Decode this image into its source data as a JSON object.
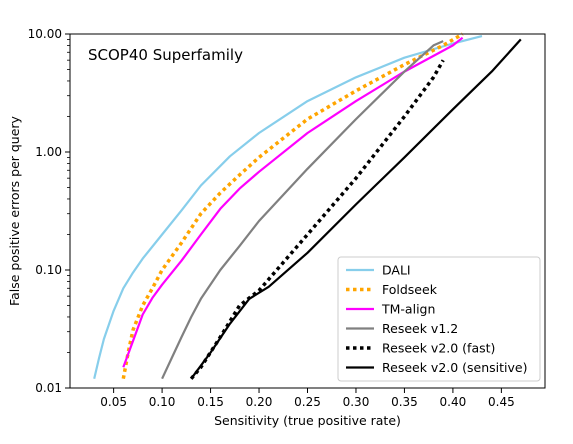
{
  "chart_data": {
    "type": "line",
    "annotation": "SCOP40 Superfamily",
    "xlabel": "Sensitivity (true positive rate)",
    "ylabel": "False positive errors per query",
    "xlim": [
      0.005,
      0.495
    ],
    "ylim": [
      0.01,
      10
    ],
    "yscale": "log",
    "grid": false,
    "legend_position": "bottom-right",
    "x_ticks": [
      0.05,
      0.1,
      0.15,
      0.2,
      0.25,
      0.3,
      0.35,
      0.4,
      0.45
    ],
    "x_tick_labels": [
      "0.05",
      "0.10",
      "0.15",
      "0.20",
      "0.25",
      "0.30",
      "0.35",
      "0.40",
      "0.45"
    ],
    "y_ticks": [
      0.01,
      0.1,
      1,
      10
    ],
    "y_tick_labels": [
      "0.01",
      "0.10",
      "1.00",
      "10.00"
    ],
    "series": [
      {
        "name": "DALI",
        "color": "#87ceeb",
        "dash": "solid",
        "points": [
          [
            0.03,
            0.012
          ],
          [
            0.035,
            0.018
          ],
          [
            0.04,
            0.026
          ],
          [
            0.05,
            0.045
          ],
          [
            0.06,
            0.07
          ],
          [
            0.07,
            0.095
          ],
          [
            0.08,
            0.125
          ],
          [
            0.1,
            0.2
          ],
          [
            0.12,
            0.32
          ],
          [
            0.14,
            0.52
          ],
          [
            0.17,
            0.92
          ],
          [
            0.2,
            1.45
          ],
          [
            0.25,
            2.7
          ],
          [
            0.3,
            4.3
          ],
          [
            0.35,
            6.3
          ],
          [
            0.4,
            8.3
          ],
          [
            0.43,
            9.6
          ]
        ]
      },
      {
        "name": "Foldseek",
        "color": "#ffa500",
        "dash": "dotted",
        "points": [
          [
            0.06,
            0.012
          ],
          [
            0.065,
            0.02
          ],
          [
            0.07,
            0.031
          ],
          [
            0.08,
            0.05
          ],
          [
            0.09,
            0.07
          ],
          [
            0.1,
            0.1
          ],
          [
            0.12,
            0.17
          ],
          [
            0.14,
            0.3
          ],
          [
            0.16,
            0.45
          ],
          [
            0.18,
            0.64
          ],
          [
            0.2,
            0.9
          ],
          [
            0.25,
            1.9
          ],
          [
            0.3,
            3.3
          ],
          [
            0.35,
            5.5
          ],
          [
            0.39,
            8.0
          ],
          [
            0.41,
            10.0
          ]
        ]
      },
      {
        "name": "TM-align",
        "color": "#ff00ff",
        "dash": "solid",
        "points": [
          [
            0.06,
            0.015
          ],
          [
            0.07,
            0.025
          ],
          [
            0.08,
            0.042
          ],
          [
            0.09,
            0.058
          ],
          [
            0.1,
            0.075
          ],
          [
            0.12,
            0.12
          ],
          [
            0.14,
            0.2
          ],
          [
            0.16,
            0.33
          ],
          [
            0.18,
            0.49
          ],
          [
            0.2,
            0.68
          ],
          [
            0.25,
            1.45
          ],
          [
            0.3,
            2.7
          ],
          [
            0.35,
            4.8
          ],
          [
            0.4,
            8.0
          ],
          [
            0.41,
            9.3
          ]
        ]
      },
      {
        "name": "Reseek v1.2",
        "color": "#808080",
        "dash": "solid",
        "points": [
          [
            0.1,
            0.012
          ],
          [
            0.11,
            0.018
          ],
          [
            0.12,
            0.027
          ],
          [
            0.13,
            0.04
          ],
          [
            0.14,
            0.057
          ],
          [
            0.16,
            0.1
          ],
          [
            0.18,
            0.16
          ],
          [
            0.2,
            0.26
          ],
          [
            0.25,
            0.72
          ],
          [
            0.3,
            1.9
          ],
          [
            0.35,
            4.8
          ],
          [
            0.38,
            8.0
          ],
          [
            0.39,
            8.7
          ]
        ]
      },
      {
        "name": "Reseek v2.0 (fast)",
        "color": "#000000",
        "dash": "dotted",
        "points": [
          [
            0.13,
            0.012
          ],
          [
            0.14,
            0.015
          ],
          [
            0.16,
            0.027
          ],
          [
            0.18,
            0.05
          ],
          [
            0.2,
            0.067
          ],
          [
            0.25,
            0.2
          ],
          [
            0.3,
            0.6
          ],
          [
            0.35,
            2.0
          ],
          [
            0.38,
            4.3
          ],
          [
            0.39,
            6.0
          ]
        ]
      },
      {
        "name": "Reseek v2.0 (sensitive)",
        "color": "#000000",
        "dash": "solid",
        "points": [
          [
            0.13,
            0.012
          ],
          [
            0.15,
            0.02
          ],
          [
            0.17,
            0.035
          ],
          [
            0.19,
            0.057
          ],
          [
            0.21,
            0.072
          ],
          [
            0.25,
            0.14
          ],
          [
            0.3,
            0.36
          ],
          [
            0.35,
            0.9
          ],
          [
            0.4,
            2.3
          ],
          [
            0.44,
            4.8
          ],
          [
            0.47,
            9.0
          ]
        ]
      }
    ]
  }
}
